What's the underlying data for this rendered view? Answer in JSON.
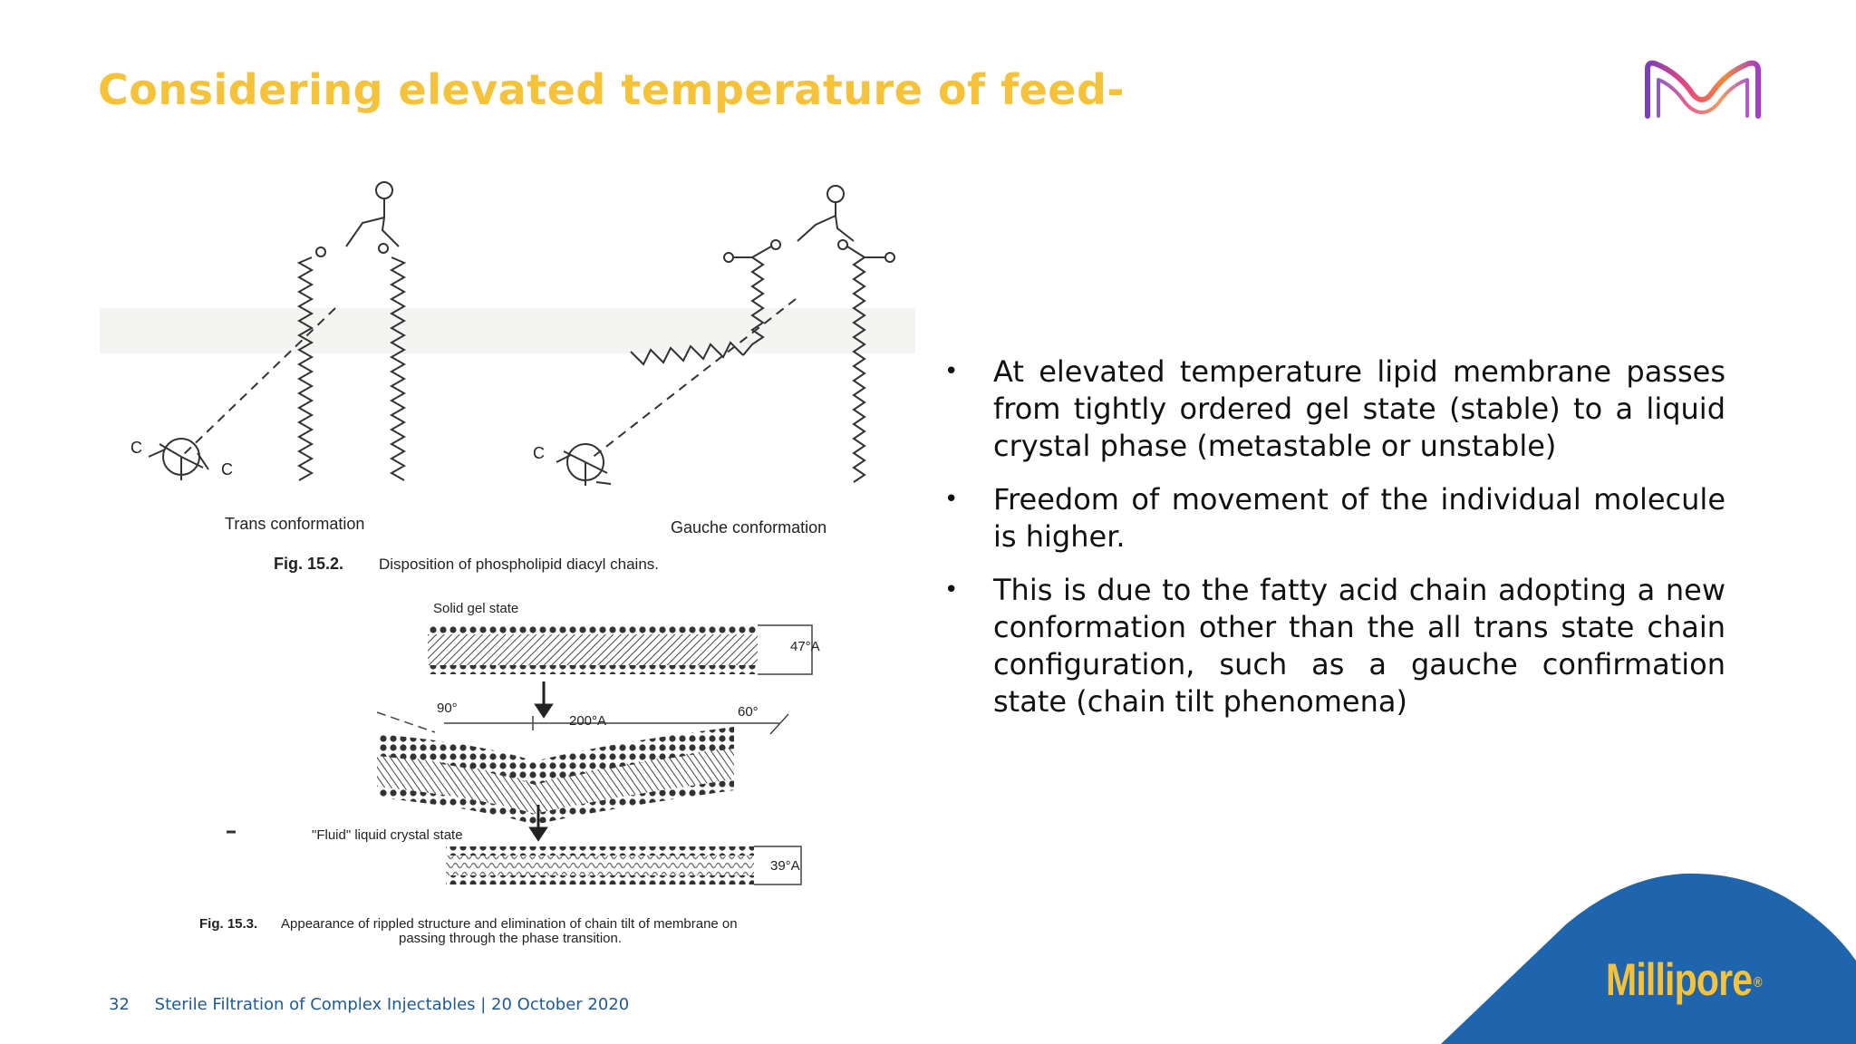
{
  "slide": {
    "title": "Considering elevated temperature of feed-"
  },
  "figure_top": {
    "trans_label": "Trans conformation",
    "gauche_label": "Gauche conformation",
    "atom_c": "C",
    "caption_number": "Fig. 15.2.",
    "caption_text": "Disposition of phospholipid diacyl chains."
  },
  "figure_bottom": {
    "solid_label": "Solid gel state",
    "thickness_solid": "47°A",
    "angle_left": "90°",
    "ripple_length": "200°A",
    "angle_right": "60°",
    "fluid_label": "\"Fluid\" liquid crystal state",
    "thickness_fluid": "39°A",
    "caption_number": "Fig. 15.3.",
    "caption_line1": "Appearance of rippled structure and elimination of chain tilt of membrane on",
    "caption_line2": "passing through the phase transition."
  },
  "bullets": [
    {
      "text": "At elevated temperature lipid membrane passes from tightly ordered gel state (stable) to a liquid crystal phase (metastable or unstable)"
    },
    {
      "text": "Freedom of movement of the individual molecule is higher."
    },
    {
      "text": "This is due to the fatty acid chain adopting a new conformation other than the all trans state chain configuration, such as a gauche confirmation state (chain tilt phenomena)"
    }
  ],
  "bullet_symbol": "•",
  "footer": {
    "page_number": "32",
    "text": "Sterile Filtration of Complex Injectables | 20 October 2020"
  },
  "brand": {
    "name": "Millipore",
    "registered": "®",
    "primary_yellow": "#f6c23a",
    "corner_blue": "#1f65ad"
  },
  "icons": {
    "logo": "merck-m-logo-icon"
  }
}
